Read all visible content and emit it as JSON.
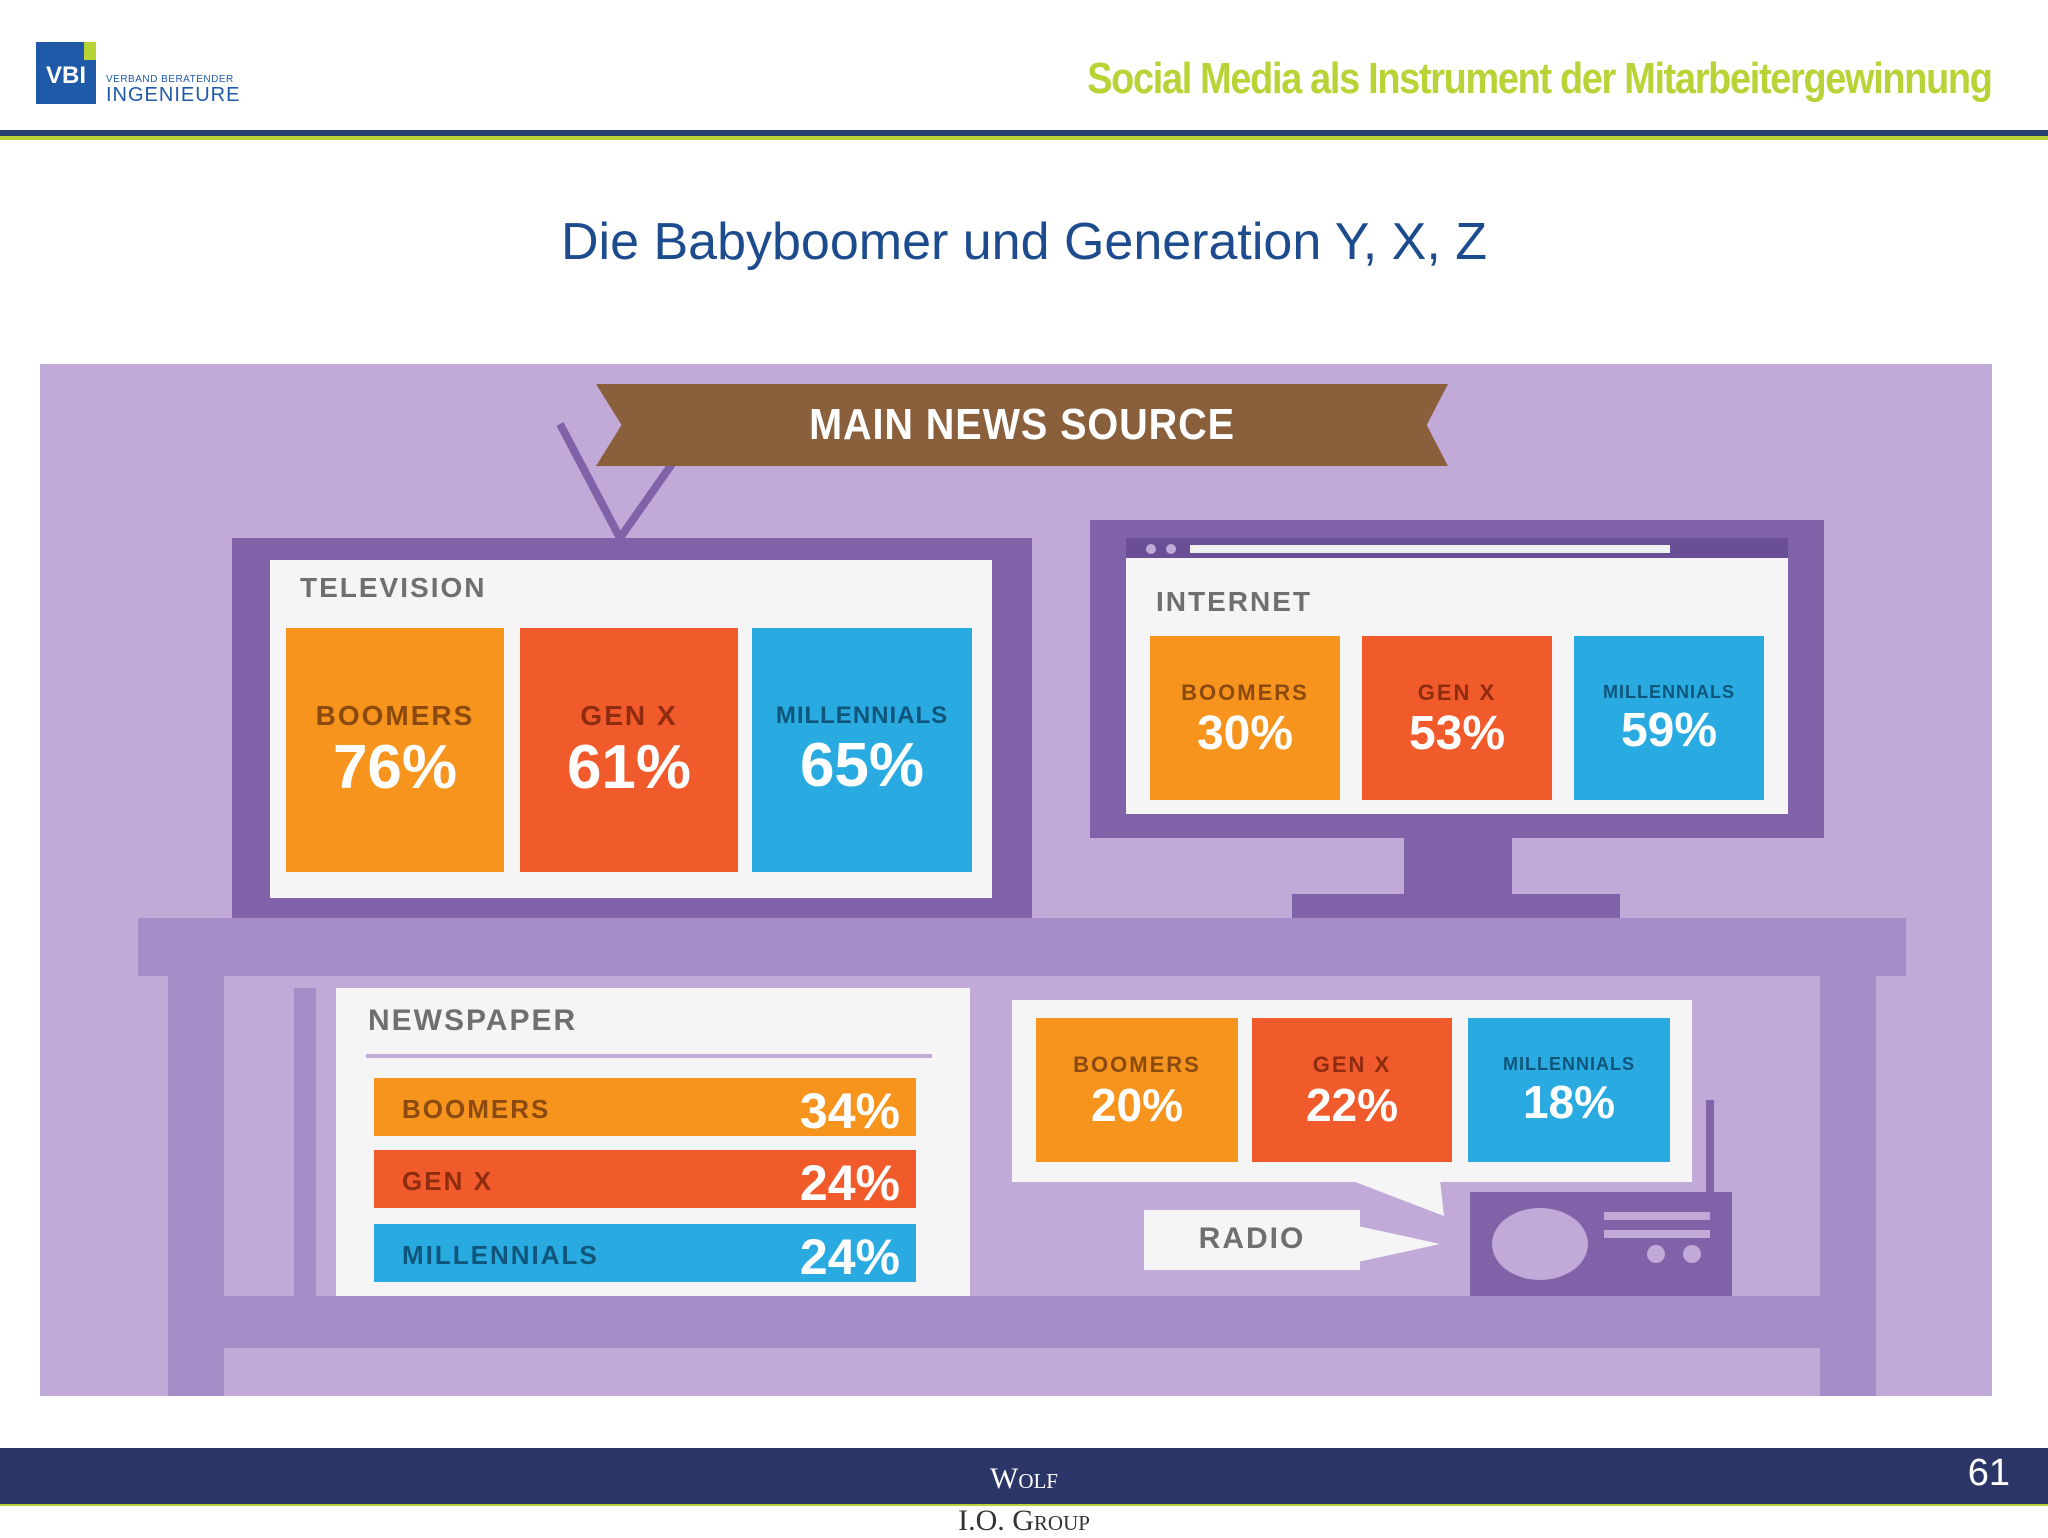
{
  "header": {
    "logo_text": "VBI",
    "logo_subtitle_small": "VERBAND BERATENDER",
    "logo_subtitle_big": "INGENIEURE",
    "title": "Social Media als Instrument der Mitarbeitergewinnung",
    "accent_color": "#b8d335",
    "line_color": "#27406e"
  },
  "slide": {
    "title": "Die Babyboomer und Generation Y, X, Z"
  },
  "infographic": {
    "banner": "MAIN NEWS SOURCE",
    "background_color": "#c1a9d8",
    "colors": {
      "boomers": "#f7941d",
      "gen_x": "#f15a2b",
      "millennials": "#29abe2",
      "furniture": "#7f62a8"
    },
    "television": {
      "label": "TELEVISION",
      "items": [
        {
          "category": "BOOMERS",
          "value": "76%"
        },
        {
          "category": "GEN X",
          "value": "61%"
        },
        {
          "category": "MILLENNIALS",
          "value": "65%"
        }
      ]
    },
    "internet": {
      "label": "INTERNET",
      "items": [
        {
          "category": "BOOMERS",
          "value": "30%"
        },
        {
          "category": "GEN X",
          "value": "53%"
        },
        {
          "category": "MILLENNIALS",
          "value": "59%"
        }
      ]
    },
    "newspaper": {
      "label": "NEWSPAPER",
      "items": [
        {
          "category": "BOOMERS",
          "value": "34%"
        },
        {
          "category": "GEN X",
          "value": "24%"
        },
        {
          "category": "MILLENNIALS",
          "value": "24%"
        }
      ]
    },
    "radio": {
      "label": "RADIO",
      "items": [
        {
          "category": "BOOMERS",
          "value": "20%"
        },
        {
          "category": "GEN X",
          "value": "22%"
        },
        {
          "category": "MILLENNIALS",
          "value": "18%"
        }
      ]
    }
  },
  "footer": {
    "company_line1": "Wolf",
    "company_line2": "I.O. Group",
    "page_number": "61"
  }
}
